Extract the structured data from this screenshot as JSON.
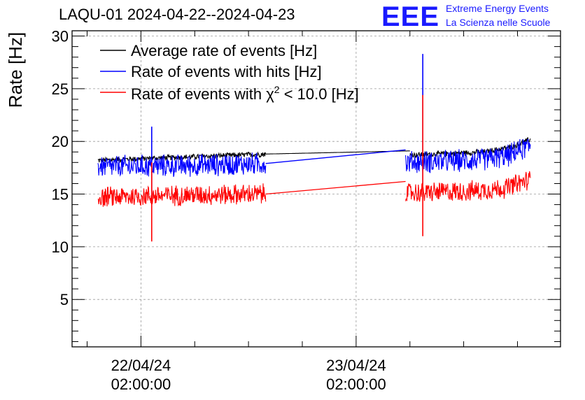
{
  "header": {
    "title": "LAQU-01 2024-04-22--2024-04-23",
    "logo_text": "EEE",
    "logo_line1": "Extreme Energy Events",
    "logo_line2": "La Scienza nelle Scuole"
  },
  "chart_data": {
    "type": "line",
    "title": "LAQU-01 2024-04-22--2024-04-23",
    "ylabel": "Rate [Hz]",
    "xlabel": "",
    "ylim": [
      0.5,
      30.5
    ],
    "yticks": [
      5,
      10,
      15,
      20,
      25,
      30
    ],
    "xlim": [
      -0.32,
      1.95
    ],
    "xtick_labels": [
      {
        "x": 0,
        "line1": "22/04/24",
        "line2": "02:00:00"
      },
      {
        "x": 1,
        "line1": "23/04/24",
        "line2": "02:00:00"
      }
    ],
    "grid": true,
    "legend_position": "top-left",
    "legend_chi_prefix": "Rate of events with ",
    "legend_chi_symbol": "χ",
    "legend_chi_sup": "2",
    "legend_chi_suffix": " < 10.0 [Hz]",
    "series": [
      {
        "name": "Average rate of events [Hz]",
        "color": "#000000",
        "segments": [
          {
            "x_start": -0.2,
            "x_end": 0.58,
            "base": 18.0,
            "noise": 0.3,
            "trend": [
              [
                -0.2,
                18.2
              ],
              [
                0.58,
                18.8
              ]
            ]
          },
          {
            "x_start": 0.58,
            "x_end": 1.25,
            "base": 18.8,
            "noise": 0.0,
            "trend": [
              [
                0.58,
                18.8
              ],
              [
                1.25,
                19.1
              ]
            ]
          },
          {
            "x_start": 1.25,
            "x_end": 1.81,
            "base": 18.9,
            "noise": 0.3,
            "trend": [
              [
                1.25,
                18.7
              ],
              [
                1.6,
                19.0
              ],
              [
                1.73,
                19.5
              ],
              [
                1.81,
                20.2
              ]
            ]
          }
        ]
      },
      {
        "name": "Rate of events with hits [Hz]",
        "color": "#0000ff",
        "segments": [
          {
            "x_start": -0.2,
            "x_end": 0.58,
            "noise": 1.2,
            "trend": [
              [
                -0.2,
                17.6
              ],
              [
                0.2,
                17.7
              ],
              [
                0.58,
                17.9
              ]
            ]
          },
          {
            "x_start": 1.23,
            "x_end": 1.81,
            "noise": 1.2,
            "trend": [
              [
                1.23,
                18.0
              ],
              [
                1.55,
                18.2
              ],
              [
                1.7,
                18.6
              ],
              [
                1.81,
                19.6
              ]
            ]
          }
        ],
        "connector": [
          [
            0.58,
            17.9
          ],
          [
            1.23,
            19.2
          ]
        ],
        "spikes": [
          {
            "x": 0.05,
            "low": 14.5,
            "high": 21.4
          },
          {
            "x": 1.31,
            "low": 16.0,
            "high": 28.3
          }
        ]
      },
      {
        "name": "Rate of events with χ2 < 10.0 [Hz]",
        "color": "#ff0000",
        "segments": [
          {
            "x_start": -0.2,
            "x_end": 0.58,
            "noise": 1.1,
            "trend": [
              [
                -0.2,
                14.7
              ],
              [
                0.2,
                14.9
              ],
              [
                0.58,
                15.0
              ]
            ]
          },
          {
            "x_start": 1.23,
            "x_end": 1.81,
            "noise": 1.1,
            "trend": [
              [
                1.23,
                15.1
              ],
              [
                1.55,
                15.3
              ],
              [
                1.7,
                15.6
              ],
              [
                1.81,
                16.4
              ]
            ]
          }
        ],
        "connector": [
          [
            0.58,
            15.0
          ],
          [
            1.23,
            16.2
          ]
        ],
        "spikes": [
          {
            "x": 0.05,
            "low": 10.5,
            "high": 18.0
          },
          {
            "x": 1.31,
            "low": 11.0,
            "high": 24.4
          }
        ]
      }
    ]
  }
}
